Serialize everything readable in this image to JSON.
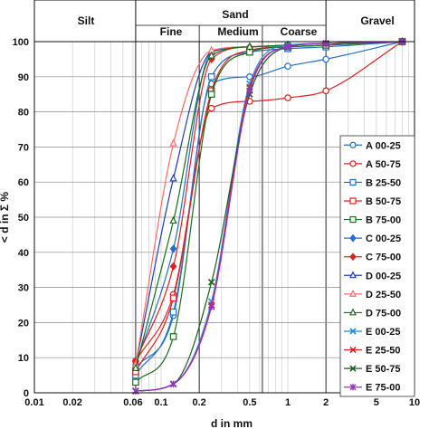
{
  "chart_data": {
    "type": "line",
    "title": "",
    "xlabel": "d in mm",
    "ylabel": "< d in Σ %",
    "x_scale": "log",
    "xlim": [
      0.01,
      10
    ],
    "ylim": [
      0,
      100
    ],
    "grid": true,
    "legend_position": "right",
    "x_ticks": [
      {
        "value": 0.01,
        "label": "0.01"
      },
      {
        "value": 0.02,
        "label": "0.02"
      },
      {
        "value": 0.06,
        "label": "0.06"
      },
      {
        "value": 0.1,
        "label": "0.1"
      },
      {
        "value": 0.2,
        "label": "0.2"
      },
      {
        "value": 0.5,
        "label": "0.5"
      },
      {
        "value": 1,
        "label": "1"
      },
      {
        "value": 2,
        "label": "2"
      },
      {
        "value": 5,
        "label": "5"
      },
      {
        "value": 10,
        "label": "10"
      }
    ],
    "y_ticks": [
      0,
      10,
      20,
      30,
      40,
      50,
      60,
      70,
      80,
      90,
      100
    ],
    "header": {
      "silt": "Silt",
      "sand": "Sand",
      "fine": "Fine",
      "medium": "Medium",
      "coarse": "Coarse",
      "gravel": "Gravel"
    },
    "series": [
      {
        "name": "A 00-25",
        "color": "#1f6fd1",
        "marker": "circle",
        "x": [
          0.063,
          0.125,
          0.25,
          0.5,
          1,
          2,
          8
        ],
        "y": [
          7,
          22,
          88,
          90,
          93,
          95,
          100
        ]
      },
      {
        "name": "A 50-75",
        "color": "#e02020",
        "marker": "circle",
        "x": [
          0.063,
          0.125,
          0.25,
          0.5,
          1,
          2,
          8
        ],
        "y": [
          9,
          28,
          81,
          83,
          84,
          86,
          100
        ]
      },
      {
        "name": "B 25-50",
        "color": "#1f6fd1",
        "marker": "square",
        "x": [
          0.063,
          0.125,
          0.25,
          0.5,
          1,
          2,
          8
        ],
        "y": [
          5,
          23,
          90,
          97,
          98,
          98.5,
          100
        ]
      },
      {
        "name": "B 50-75",
        "color": "#e02020",
        "marker": "square",
        "x": [
          0.063,
          0.125,
          0.25,
          0.5,
          1,
          2,
          8
        ],
        "y": [
          6,
          27,
          86,
          97.5,
          98.5,
          99,
          100
        ]
      },
      {
        "name": "B 75-00",
        "color": "#1a6e1a",
        "marker": "square",
        "x": [
          0.063,
          0.125,
          0.25,
          0.5,
          1,
          2,
          8
        ],
        "y": [
          3,
          16,
          85,
          97,
          98.5,
          99,
          100
        ]
      },
      {
        "name": "C 00-25",
        "color": "#1f6fd1",
        "marker": "diamond",
        "x": [
          0.063,
          0.125,
          0.25,
          0.5,
          1,
          2,
          8
        ],
        "y": [
          8,
          41,
          97,
          98.5,
          99,
          99.5,
          100
        ]
      },
      {
        "name": "C 75-00",
        "color": "#e02020",
        "marker": "diamond",
        "x": [
          0.063,
          0.125,
          0.25,
          0.5,
          1,
          2,
          8
        ],
        "y": [
          9,
          36,
          95,
          98.5,
          99,
          99.5,
          100
        ]
      },
      {
        "name": "D 00-25",
        "color": "#1f3fb0",
        "marker": "triangle",
        "x": [
          0.063,
          0.125,
          0.25,
          0.5,
          1,
          2,
          8
        ],
        "y": [
          8,
          61,
          97,
          98.5,
          99,
          99.5,
          100
        ]
      },
      {
        "name": "D 25-50",
        "color": "#ff6a6a",
        "marker": "triangle-open",
        "x": [
          0.063,
          0.125,
          0.25,
          0.5,
          1,
          2,
          8
        ],
        "y": [
          8,
          71,
          97.5,
          98.5,
          99,
          99.5,
          100
        ]
      },
      {
        "name": "D 75-00",
        "color": "#1a6e1a",
        "marker": "triangle",
        "x": [
          0.063,
          0.125,
          0.25,
          0.5,
          1,
          2,
          8
        ],
        "y": [
          7,
          49,
          96,
          98.5,
          99,
          99.5,
          100
        ]
      },
      {
        "name": "E 00-25",
        "color": "#1f8fd8",
        "marker": "x",
        "x": [
          0.063,
          0.125,
          0.25,
          0.5,
          1,
          2,
          8
        ],
        "y": [
          0.5,
          2.5,
          26,
          88,
          99,
          99.5,
          100
        ]
      },
      {
        "name": "E 25-50",
        "color": "#e02020",
        "marker": "x",
        "x": [
          0.063,
          0.125,
          0.25,
          0.5,
          1,
          2,
          8
        ],
        "y": [
          0.5,
          2.5,
          25,
          87,
          98.5,
          99.5,
          100
        ]
      },
      {
        "name": "E 50-75",
        "color": "#1a5e1a",
        "marker": "x",
        "x": [
          0.063,
          0.125,
          0.25,
          0.5,
          1,
          2,
          8
        ],
        "y": [
          0.5,
          2.5,
          31.5,
          85,
          98.5,
          99.5,
          100
        ]
      },
      {
        "name": "E 75-00",
        "color": "#9a2fd0",
        "marker": "star",
        "x": [
          0.063,
          0.125,
          0.25,
          0.5,
          1,
          2,
          8
        ],
        "y": [
          0.5,
          2.5,
          24.5,
          86,
          98.5,
          99.5,
          100
        ]
      }
    ]
  }
}
